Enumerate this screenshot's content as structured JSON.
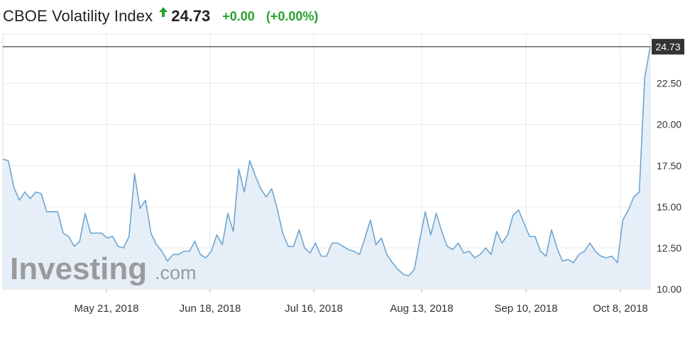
{
  "header": {
    "title": "CBOE Volatility Index",
    "price": "24.73",
    "change": "+0.00",
    "change_pct": "(+0.00%)",
    "direction_icon": "up-arrow-icon"
  },
  "watermark": {
    "brand_main": "Investing",
    "brand_suffix": ".com"
  },
  "colors": {
    "line": "#6fa5d2",
    "area": "#e6eff7",
    "positive": "#27a22c",
    "last_price_box": "#333333",
    "grid": "#e9e9e9"
  },
  "chart_data": {
    "type": "area",
    "title": "",
    "xlabel": "",
    "ylabel": "",
    "x_ticks": [
      "May 21, 2018",
      "Jun 18, 2018",
      "Jul 16, 2018",
      "Aug 13, 2018",
      "Sep 10, 2018",
      "Oct 8, 2018"
    ],
    "y_ticks": [
      "10.00",
      "12.50",
      "15.00",
      "17.50",
      "20.00",
      "22.50"
    ],
    "ylim": [
      10,
      25.5
    ],
    "last_value_label": "24.73",
    "grid": true,
    "values": [
      17.9,
      17.8,
      16.2,
      15.4,
      15.9,
      15.5,
      15.9,
      15.8,
      14.7,
      14.7,
      14.7,
      13.4,
      13.2,
      12.6,
      12.9,
      14.6,
      13.4,
      13.4,
      13.4,
      13.1,
      13.2,
      12.6,
      12.5,
      13.2,
      17.0,
      14.9,
      15.4,
      13.4,
      12.7,
      12.3,
      11.7,
      12.1,
      12.1,
      12.3,
      12.3,
      12.9,
      12.1,
      11.9,
      12.3,
      13.3,
      12.7,
      14.6,
      13.5,
      17.3,
      15.9,
      17.8,
      16.9,
      16.1,
      15.6,
      16.1,
      14.9,
      13.4,
      12.6,
      12.6,
      13.6,
      12.5,
      12.2,
      12.8,
      12.0,
      12.0,
      12.8,
      12.8,
      12.6,
      12.4,
      12.3,
      12.1,
      13.1,
      14.2,
      12.7,
      13.1,
      12.1,
      11.6,
      11.2,
      10.9,
      10.8,
      11.2,
      13.0,
      14.7,
      13.3,
      14.6,
      13.5,
      12.6,
      12.4,
      12.8,
      12.2,
      12.3,
      11.9,
      12.1,
      12.5,
      12.1,
      13.5,
      12.8,
      13.3,
      14.5,
      14.8,
      14.0,
      13.2,
      13.2,
      12.3,
      12.0,
      13.6,
      12.5,
      11.7,
      11.8,
      11.6,
      12.1,
      12.3,
      12.8,
      12.3,
      12.0,
      11.9,
      12.0,
      11.6,
      14.2,
      14.8,
      15.6,
      15.9,
      22.9,
      24.73
    ]
  }
}
